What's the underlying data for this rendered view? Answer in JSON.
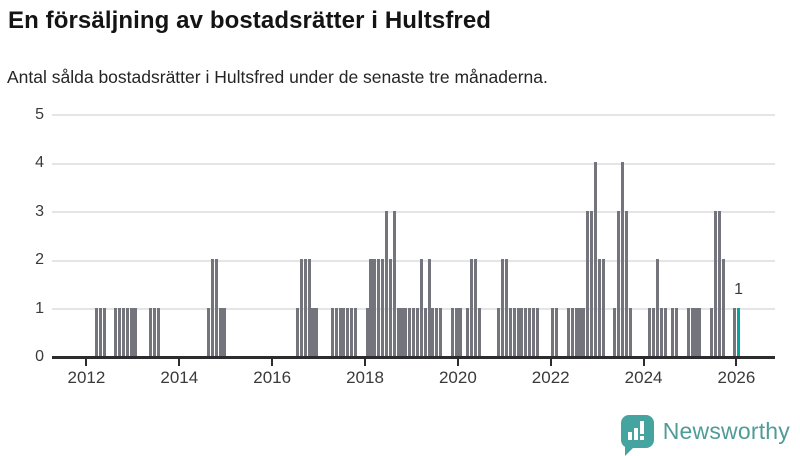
{
  "header": {
    "title": "En försäljning av bostadsrätter i Hultsfred",
    "subtitle": "Antal sålda bostadsrätter i Hultsfred under de senaste tre månaderna."
  },
  "chart_data": {
    "type": "bar",
    "title": "En försäljning av bostadsrätter i Hultsfred",
    "subtitle": "Antal sålda bostadsrätter i Hultsfred under de senaste tre månaderna.",
    "x_unit": "month",
    "start_year": 2011,
    "start_month": 5,
    "values": [
      0,
      0,
      0,
      0,
      0,
      0,
      0,
      0,
      0,
      0,
      1,
      1,
      1,
      0,
      0,
      1,
      1,
      1,
      1,
      1,
      1,
      0,
      0,
      0,
      1,
      1,
      1,
      0,
      0,
      0,
      0,
      0,
      0,
      0,
      0,
      0,
      0,
      0,
      0,
      1,
      2,
      2,
      1,
      1,
      0,
      0,
      0,
      0,
      0,
      0,
      0,
      0,
      0,
      0,
      0,
      0,
      0,
      0,
      0,
      0,
      0,
      0,
      1,
      2,
      2,
      2,
      1,
      1,
      0,
      0,
      0,
      1,
      1,
      1,
      1,
      1,
      1,
      1,
      0,
      0,
      1,
      2,
      2,
      2,
      2,
      3,
      2,
      3,
      1,
      1,
      1,
      1,
      1,
      1,
      2,
      1,
      2,
      1,
      1,
      1,
      0,
      0,
      1,
      1,
      1,
      0,
      1,
      2,
      2,
      1,
      0,
      0,
      0,
      0,
      1,
      2,
      2,
      1,
      1,
      1,
      1,
      1,
      1,
      1,
      1,
      0,
      0,
      0,
      1,
      1,
      0,
      0,
      1,
      1,
      1,
      1,
      1,
      3,
      3,
      4,
      2,
      2,
      0,
      0,
      1,
      3,
      4,
      3,
      1,
      0,
      0,
      0,
      0,
      1,
      1,
      2,
      1,
      1,
      0,
      1,
      1,
      0,
      0,
      1,
      1,
      1,
      1,
      0,
      0,
      1,
      3,
      3,
      2,
      0,
      0,
      1,
      1
    ],
    "highlight_index": 176,
    "highlight_label": "1",
    "ylim": [
      0,
      5
    ],
    "yticks": [
      0,
      1,
      2,
      3,
      4,
      5
    ],
    "xticks": [
      2012,
      2014,
      2016,
      2018,
      2020,
      2022,
      2024,
      2026
    ],
    "grid": "horizontal",
    "legend": "none",
    "bar_color": "#74747c",
    "highlight_color": "#0aa3a0"
  },
  "footer": {
    "brand": "Newsworthy",
    "logo_color": "#45a49f",
    "brand_text_color": "#4f9c98"
  }
}
